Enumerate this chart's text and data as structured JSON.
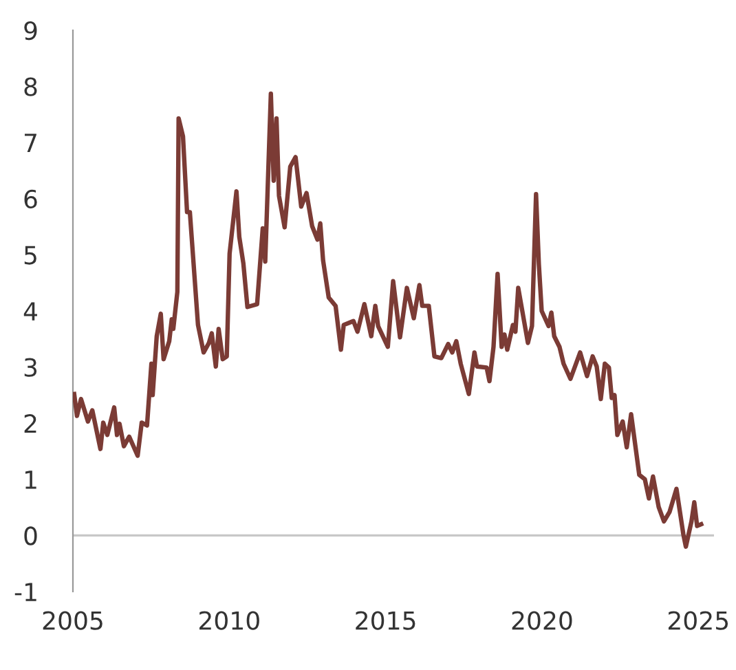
{
  "chart_data": {
    "type": "line",
    "x": [
      2005.04,
      2005.13,
      2005.26,
      2005.48,
      2005.62,
      2005.88,
      2005.97,
      2006.1,
      2006.32,
      2006.41,
      2006.49,
      2006.63,
      2006.8,
      2007.07,
      2007.2,
      2007.37,
      2007.51,
      2007.55,
      2007.68,
      2007.81,
      2007.9,
      2008.08,
      2008.16,
      2008.21,
      2008.34,
      2008.38,
      2008.52,
      2008.65,
      2008.74,
      2009.0,
      2009.18,
      2009.35,
      2009.44,
      2009.57,
      2009.66,
      2009.79,
      2009.92,
      2010.01,
      2010.23,
      2010.32,
      2010.45,
      2010.58,
      2010.89,
      2011.07,
      2011.15,
      2011.33,
      2011.42,
      2011.51,
      2011.59,
      2011.77,
      2011.95,
      2012.12,
      2012.3,
      2012.47,
      2012.65,
      2012.82,
      2012.91,
      2013.0,
      2013.18,
      2013.4,
      2013.57,
      2013.66,
      2013.97,
      2014.1,
      2014.32,
      2014.54,
      2014.67,
      2014.76,
      2015.07,
      2015.24,
      2015.46,
      2015.68,
      2015.9,
      2016.08,
      2016.17,
      2016.38,
      2016.56,
      2016.78,
      2017.0,
      2017.13,
      2017.26,
      2017.4,
      2017.66,
      2017.84,
      2017.92,
      2018.23,
      2018.32,
      2018.45,
      2018.58,
      2018.71,
      2018.8,
      2018.89,
      2019.07,
      2019.15,
      2019.24,
      2019.55,
      2019.68,
      2019.81,
      2019.9,
      2019.99,
      2020.21,
      2020.3,
      2020.39,
      2020.56,
      2020.69,
      2020.91,
      2021.22,
      2021.44,
      2021.62,
      2021.75,
      2021.88,
      2022.01,
      2022.14,
      2022.23,
      2022.32,
      2022.41,
      2022.58,
      2022.71,
      2022.85,
      2023.11,
      2023.29,
      2023.42,
      2023.55,
      2023.73,
      2023.9,
      2024.08,
      2024.3,
      2024.52,
      2024.6,
      2024.78,
      2024.87,
      2024.96,
      2025.09
    ],
    "series": [
      {
        "color": "#7b3b35",
        "values": [
          2.52,
          2.13,
          2.43,
          2.03,
          2.23,
          1.54,
          2.01,
          1.79,
          2.28,
          1.79,
          1.99,
          1.59,
          1.76,
          1.42,
          2.01,
          1.96,
          3.06,
          2.5,
          3.55,
          3.95,
          3.14,
          3.46,
          3.85,
          3.68,
          4.34,
          7.43,
          7.11,
          5.76,
          5.76,
          3.75,
          3.26,
          3.43,
          3.6,
          3.01,
          3.68,
          3.14,
          3.19,
          5.02,
          6.13,
          5.32,
          4.85,
          4.07,
          4.12,
          5.47,
          4.88,
          7.87,
          6.32,
          7.43,
          6.05,
          5.49,
          6.57,
          6.74,
          5.86,
          6.1,
          5.51,
          5.27,
          5.56,
          4.9,
          4.24,
          4.09,
          3.31,
          3.75,
          3.82,
          3.63,
          4.12,
          3.55,
          4.09,
          3.73,
          3.36,
          4.53,
          3.53,
          4.41,
          3.87,
          4.46,
          4.09,
          4.09,
          3.19,
          3.16,
          3.41,
          3.26,
          3.46,
          3.06,
          2.52,
          3.26,
          3.01,
          2.99,
          2.75,
          3.36,
          4.66,
          3.36,
          3.58,
          3.31,
          3.75,
          3.63,
          4.41,
          3.43,
          3.73,
          6.08,
          4.83,
          4.0,
          3.73,
          3.97,
          3.55,
          3.36,
          3.06,
          2.79,
          3.26,
          2.84,
          3.19,
          3.01,
          2.43,
          3.06,
          2.99,
          2.45,
          2.5,
          1.79,
          2.03,
          1.57,
          2.16,
          1.08,
          1.0,
          0.66,
          1.05,
          0.51,
          0.25,
          0.42,
          0.83,
          0.02,
          -0.2,
          0.25,
          0.59,
          0.17,
          0.2
        ]
      }
    ],
    "xlim": [
      2005,
      2025.5
    ],
    "xticks": [
      2005,
      2010,
      2015,
      2020,
      2025
    ],
    "ylim": [
      -1,
      9
    ],
    "yticks": [
      -1,
      0,
      1,
      2,
      3,
      4,
      5,
      6,
      7,
      8,
      9
    ],
    "ref_lines": [
      {
        "axis": "y",
        "value": 0,
        "color": "#c8c8c8"
      }
    ],
    "grid": false,
    "legend": false,
    "marker": "none",
    "line_style": "solid"
  }
}
